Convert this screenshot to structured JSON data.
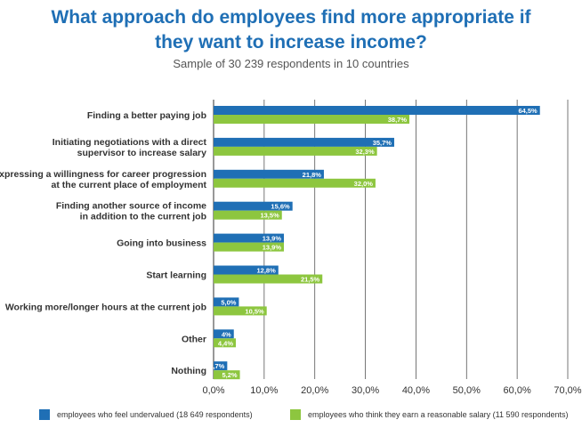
{
  "title_line1": "What approach do employees find more appropriate if",
  "title_line2": "they want to increase income?",
  "subtitle": "Sample of 30 239 respondents in 10 countries",
  "colors": {
    "series1": "#1f6fb5",
    "series2": "#8dc63f",
    "grid": "#555555",
    "text": "#333333"
  },
  "legend": [
    {
      "label": "employees who feel undervalued (18 649 respondents)",
      "color": "#1f6fb5"
    },
    {
      "label": "employees who think they earn a reasonable salary (11 590 respondents)",
      "color": "#8dc63f"
    }
  ],
  "chart_data": {
    "type": "bar",
    "orientation": "horizontal",
    "categories": [
      [
        "Finding a better paying job"
      ],
      [
        "Initiating negotiations with a direct",
        "supervisor to increase salary"
      ],
      [
        "Expressing a willingness for career progression",
        "at the current place of employment"
      ],
      [
        "Finding another source of income",
        "in addition to the current job"
      ],
      [
        "Going into business"
      ],
      [
        "Start learning"
      ],
      [
        "Working more/longer hours at the current job"
      ],
      [
        "Other"
      ],
      [
        "Nothing"
      ]
    ],
    "series": [
      {
        "name": "employees who feel undervalued (18 649 respondents)",
        "values": [
          64.5,
          35.7,
          21.8,
          15.6,
          13.9,
          12.8,
          5.0,
          4,
          2.7
        ],
        "labels": [
          "64,5%",
          "35,7%",
          "21,8%",
          "15,6%",
          "13,9%",
          "12,8%",
          "5,0%",
          "4%",
          "2,7%"
        ]
      },
      {
        "name": "employees who think they earn a reasonable salary (11 590 respondents)",
        "values": [
          38.7,
          32.3,
          32.0,
          13.5,
          13.9,
          21.5,
          10.5,
          4.4,
          5.2
        ],
        "labels": [
          "38,7%",
          "32,3%",
          "32,0%",
          "13,5%",
          "13,9%",
          "21,5%",
          "10,5%",
          "4,4%",
          "5,2%"
        ]
      }
    ],
    "xlim": [
      0,
      70
    ],
    "xticks": [
      0,
      10,
      20,
      30,
      40,
      50,
      60,
      70
    ],
    "xtick_labels": [
      "0,0%",
      "10,0%",
      "20,0%",
      "30,0%",
      "40,0%",
      "50,0%",
      "60,0%",
      "70,0%"
    ],
    "grid": true,
    "legend_position": "bottom"
  }
}
